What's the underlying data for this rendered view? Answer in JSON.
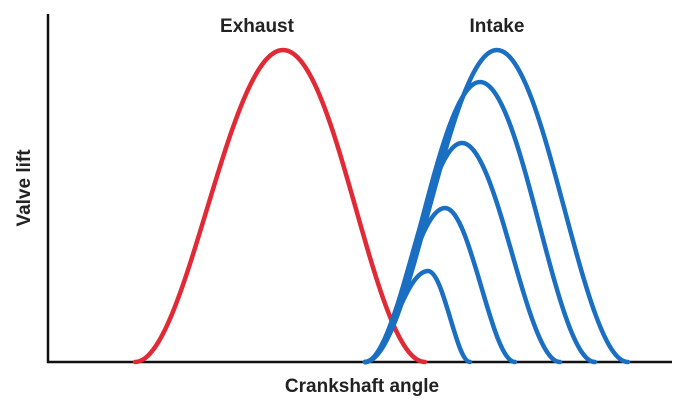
{
  "labels": {
    "exhaust": "Exhaust",
    "intake": "Intake",
    "y_axis": "Valve lift",
    "x_axis": "Crankshaft angle"
  }
}
